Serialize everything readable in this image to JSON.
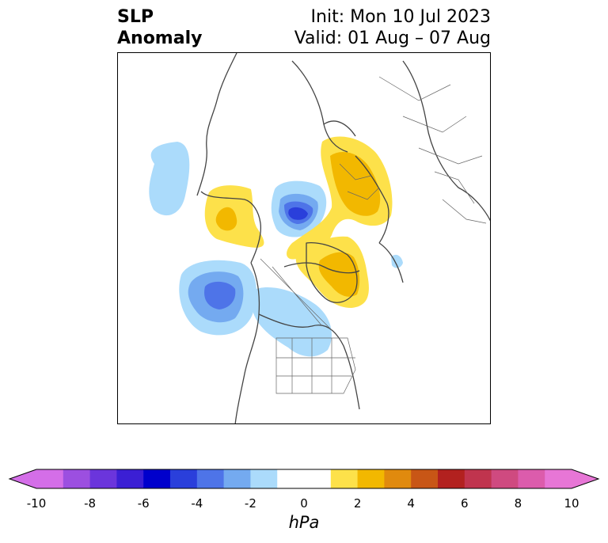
{
  "title": {
    "variable_line1": "SLP",
    "variable_line2": "Anomaly",
    "init": "Init: Mon 10 Jul 2023",
    "valid": "Valid: 01 Aug – 07 Aug"
  },
  "map": {
    "projection": "polar stereographic (Northern Hemisphere)",
    "anomaly_regions": [
      {
        "name": "north-pacific-low",
        "sign": "negative",
        "peak_hpa": -4
      },
      {
        "name": "arctic-low",
        "sign": "negative",
        "peak_hpa": -4
      },
      {
        "name": "west-pacific-negative",
        "sign": "negative",
        "peak_hpa": -2
      },
      {
        "name": "canada-negative",
        "sign": "negative",
        "peak_hpa": -2
      },
      {
        "name": "greenland-high",
        "sign": "positive",
        "peak_hpa": 2
      },
      {
        "name": "siberia-high",
        "sign": "positive",
        "peak_hpa": 2
      },
      {
        "name": "alaska-east-asia-high",
        "sign": "positive",
        "peak_hpa": 2
      }
    ]
  },
  "colorbar": {
    "unit": "hPa",
    "ticks": [
      "-10",
      "-8",
      "-6",
      "-4",
      "-2",
      "0",
      "2",
      "4",
      "6",
      "8",
      "10"
    ],
    "colors": [
      "#d46ee8",
      "#9c4fe0",
      "#6b35dc",
      "#3b1fd4",
      "#0000cc",
      "#2a3fdb",
      "#4e74e8",
      "#74aaf0",
      "#abdbfb",
      "#ffffff",
      "#ffffff",
      "#fde14a",
      "#f2b800",
      "#e08a0e",
      "#c85616",
      "#b2211f",
      "#c0344e",
      "#cf4a80",
      "#dc5cac",
      "#e776d6"
    ],
    "under_color": "#d46ee8",
    "over_color": "#e776d6"
  }
}
